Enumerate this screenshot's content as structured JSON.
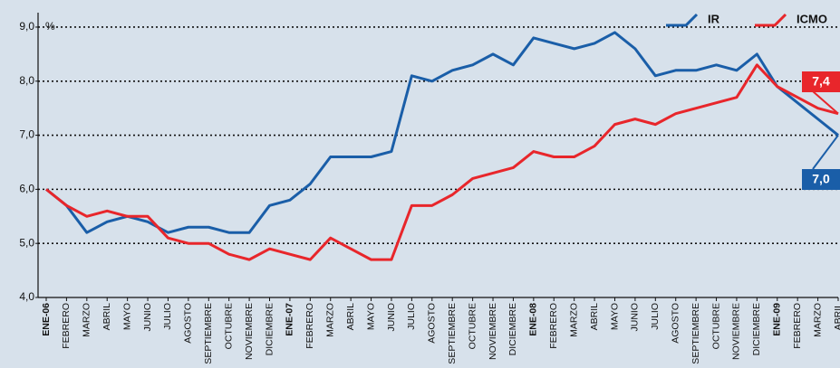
{
  "chart_data": {
    "type": "line",
    "y_label": "%",
    "categories": [
      "ENE-06",
      "FEBRERO",
      "MARZO",
      "ABRIL",
      "MAYO",
      "JUNIO",
      "JULIO",
      "AGOSTO",
      "SEPTIEMBRE",
      "OCTUBRE",
      "NOVIEMBRE",
      "DICIEMBRE",
      "ENE-07",
      "FEBRERO",
      "MARZO",
      "ABRIL",
      "MAYO",
      "JUNIO",
      "JULIO",
      "AGOSTO",
      "SEPTIEMBRE",
      "OCTUBRE",
      "NOVIEMBRE",
      "DICIEMBRE",
      "ENE-08",
      "FEBRERO",
      "MARZO",
      "ABRIL",
      "MAYO",
      "JUNIO",
      "JULIO",
      "AGOSTO",
      "SEPTIEMBRE",
      "OCTUBRE",
      "NOVIEMBRE",
      "DICIEMBRE",
      "ENE-09",
      "FEBRERO",
      "MARZO",
      "ABRIL"
    ],
    "series": [
      {
        "name": "IR",
        "color": "#1a5ea8",
        "values": [
          6.0,
          5.7,
          5.2,
          5.4,
          5.5,
          5.4,
          5.2,
          5.3,
          5.3,
          5.2,
          5.2,
          5.7,
          5.8,
          6.1,
          6.6,
          6.6,
          6.6,
          6.7,
          8.1,
          8.0,
          8.2,
          8.3,
          8.5,
          8.3,
          8.8,
          8.7,
          8.6,
          8.7,
          8.9,
          8.6,
          8.1,
          8.2,
          8.2,
          8.3,
          8.2,
          8.5,
          7.9,
          7.6,
          7.3,
          7.0
        ],
        "value_labels": [
          null,
          null,
          null,
          null,
          null,
          null,
          null,
          null,
          null,
          null,
          null,
          null,
          null,
          null,
          null,
          null,
          null,
          null,
          null,
          null,
          null,
          null,
          null,
          null,
          null,
          null,
          null,
          null,
          null,
          null,
          null,
          null,
          null,
          null,
          null,
          null,
          null,
          null,
          null,
          "7,0"
        ]
      },
      {
        "name": "ICMO",
        "color": "#e8262b",
        "values": [
          6.0,
          5.7,
          5.5,
          5.6,
          5.5,
          5.5,
          5.1,
          5.0,
          5.0,
          4.8,
          4.7,
          4.9,
          4.8,
          4.7,
          5.1,
          4.9,
          4.7,
          4.7,
          5.7,
          5.7,
          5.9,
          6.2,
          6.3,
          6.4,
          6.7,
          6.6,
          6.6,
          6.8,
          7.2,
          7.3,
          7.2,
          7.4,
          7.5,
          7.6,
          7.7,
          8.3,
          7.9,
          7.7,
          7.5,
          7.4
        ],
        "value_labels": [
          null,
          null,
          null,
          null,
          null,
          null,
          null,
          null,
          null,
          null,
          null,
          null,
          null,
          null,
          null,
          null,
          null,
          null,
          null,
          null,
          null,
          null,
          null,
          null,
          null,
          null,
          null,
          null,
          null,
          null,
          null,
          null,
          null,
          null,
          null,
          null,
          null,
          null,
          null,
          "7,4"
        ]
      }
    ],
    "ylim": [
      4,
      9.2
    ],
    "yticks": [
      {
        "value": 4,
        "label": "4,0"
      },
      {
        "value": 5,
        "label": "5,0"
      },
      {
        "value": 6,
        "label": "6,0"
      },
      {
        "value": 7,
        "label": "7,0"
      },
      {
        "value": 8,
        "label": "8,0"
      },
      {
        "value": 9,
        "label": "9,0"
      }
    ],
    "grid": true,
    "legend": "top-right"
  }
}
